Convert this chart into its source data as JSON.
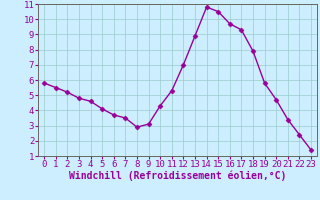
{
  "x": [
    0,
    1,
    2,
    3,
    4,
    5,
    6,
    7,
    8,
    9,
    10,
    11,
    12,
    13,
    14,
    15,
    16,
    17,
    18,
    19,
    20,
    21,
    22,
    23
  ],
  "y": [
    5.8,
    5.5,
    5.2,
    4.8,
    4.6,
    4.1,
    3.7,
    3.5,
    2.9,
    3.1,
    4.3,
    5.3,
    7.0,
    8.9,
    10.8,
    10.5,
    9.7,
    9.3,
    7.9,
    5.8,
    4.7,
    3.4,
    2.4,
    1.4
  ],
  "line_color": "#990099",
  "marker": "D",
  "marker_size": 2.5,
  "bg_color": "#cceeff",
  "grid_color": "#99cccc",
  "xlabel": "Windchill (Refroidissement éolien,°C)",
  "xlim": [
    -0.5,
    23.5
  ],
  "ylim": [
    1,
    11
  ],
  "yticks": [
    1,
    2,
    3,
    4,
    5,
    6,
    7,
    8,
    9,
    10,
    11
  ],
  "xticks": [
    0,
    1,
    2,
    3,
    4,
    5,
    6,
    7,
    8,
    9,
    10,
    11,
    12,
    13,
    14,
    15,
    16,
    17,
    18,
    19,
    20,
    21,
    22,
    23
  ],
  "tick_color": "#990099",
  "tick_fontsize": 6.5,
  "xlabel_fontsize": 7.0,
  "linewidth": 1.0
}
